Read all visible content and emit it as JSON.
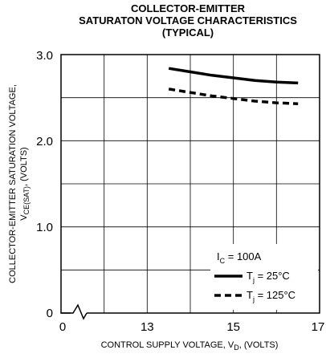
{
  "chart_data": {
    "type": "line",
    "title": [
      "COLLECTOR-EMITTER",
      "SATURATON VOLTAGE CHARACTERISTICS",
      "(TYPICAL)"
    ],
    "xlabel": {
      "main": "CONTROL SUPPLY VOLTAGE, V",
      "sub": "D",
      "tail": ", (VOLTS)"
    },
    "ylabel": {
      "main": "COLLECTOR-EMITTER SATURATION VOLTAGE,",
      "v": "V",
      "sub": "CE(SAT)",
      "tail": ", (VOLTS)"
    },
    "x_ticks": [
      "0",
      "13",
      "15",
      "17"
    ],
    "y_ticks": [
      "0",
      "1.0",
      "2.0",
      "3.0"
    ],
    "xlim": [
      11,
      17
    ],
    "ylim": [
      0,
      3.0
    ],
    "x_axis_break": true,
    "grid": true,
    "annotation": {
      "main": "I",
      "sub": "C",
      "tail": " = 100A"
    },
    "series": [
      {
        "name": {
          "main": "T",
          "sub": "j",
          "tail": " = 25°C"
        },
        "style": "solid",
        "x": [
          13.5,
          14.0,
          14.5,
          15.0,
          15.5,
          16.0,
          16.5
        ],
        "y": [
          2.84,
          2.8,
          2.76,
          2.73,
          2.7,
          2.68,
          2.67
        ]
      },
      {
        "name": {
          "main": "T",
          "sub": "j",
          "tail": " = 125°C"
        },
        "style": "dashed",
        "x": [
          13.5,
          14.0,
          14.5,
          15.0,
          15.5,
          16.0,
          16.5
        ],
        "y": [
          2.6,
          2.56,
          2.52,
          2.49,
          2.46,
          2.44,
          2.43
        ]
      }
    ],
    "legend_placement": "bottom-right"
  }
}
